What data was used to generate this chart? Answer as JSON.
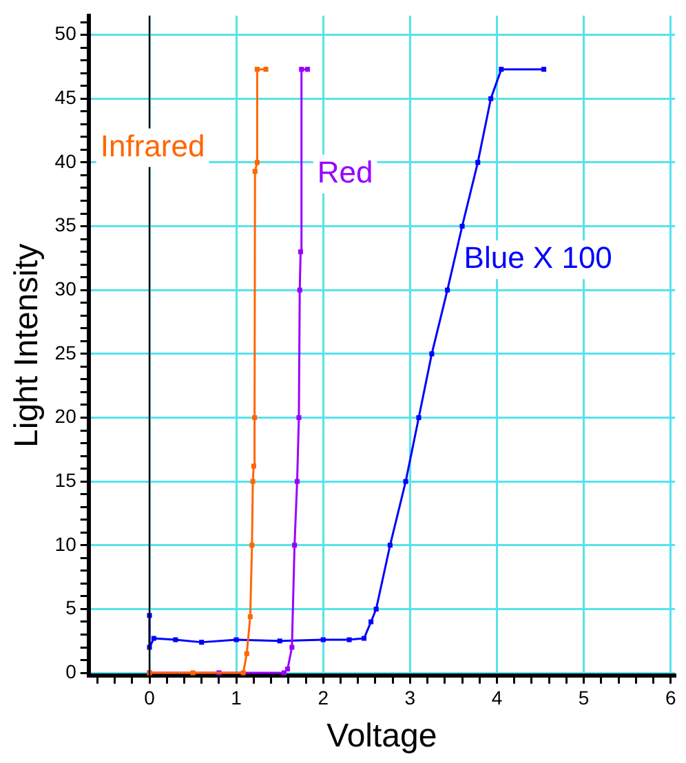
{
  "chart_data": {
    "type": "line",
    "xlabel": "Voltage",
    "ylabel": "Light Intensity",
    "xlim": [
      -0.7,
      6.05
    ],
    "ylim": [
      -0.2,
      51.5
    ],
    "xticks": [
      {
        "value": -0.6,
        "label": null
      },
      {
        "value": -0.4,
        "label": null
      },
      {
        "value": -0.2,
        "label": null
      },
      0,
      {
        "value": 0.2,
        "label": null
      },
      {
        "value": 0.4,
        "label": null
      },
      {
        "value": 0.6,
        "label": null
      },
      {
        "value": 0.8,
        "label": null
      },
      1,
      {
        "value": 1.2,
        "label": null
      },
      {
        "value": 1.4,
        "label": null
      },
      {
        "value": 1.6,
        "label": null
      },
      {
        "value": 1.8,
        "label": null
      },
      2,
      {
        "value": 2.2,
        "label": null
      },
      {
        "value": 2.4,
        "label": null
      },
      {
        "value": 2.6,
        "label": null
      },
      {
        "value": 2.8,
        "label": null
      },
      3,
      {
        "value": 3.2,
        "label": null
      },
      {
        "value": 3.4,
        "label": null
      },
      {
        "value": 3.6,
        "label": null
      },
      {
        "value": 3.8,
        "label": null
      },
      4,
      {
        "value": 4.2,
        "label": null
      },
      {
        "value": 4.4,
        "label": null
      },
      {
        "value": 4.6,
        "label": null
      },
      {
        "value": 4.8,
        "label": null
      },
      5,
      {
        "value": 5.2,
        "label": null
      },
      {
        "value": 5.4,
        "label": null
      },
      {
        "value": 5.6,
        "label": null
      },
      {
        "value": 5.8,
        "label": null
      },
      6
    ],
    "yticks": [
      0,
      {
        "value": 1,
        "label": null
      },
      {
        "value": 2,
        "label": null
      },
      {
        "value": 3,
        "label": null
      },
      {
        "value": 4,
        "label": null
      },
      5,
      {
        "value": 6,
        "label": null
      },
      {
        "value": 7,
        "label": null
      },
      {
        "value": 8,
        "label": null
      },
      {
        "value": 9,
        "label": null
      },
      10,
      {
        "value": 11,
        "label": null
      },
      {
        "value": 12,
        "label": null
      },
      {
        "value": 13,
        "label": null
      },
      {
        "value": 14,
        "label": null
      },
      15,
      {
        "value": 16,
        "label": null
      },
      {
        "value": 17,
        "label": null
      },
      {
        "value": 18,
        "label": null
      },
      {
        "value": 19,
        "label": null
      },
      20,
      {
        "value": 21,
        "label": null
      },
      {
        "value": 22,
        "label": null
      },
      {
        "value": 23,
        "label": null
      },
      {
        "value": 24,
        "label": null
      },
      25,
      {
        "value": 26,
        "label": null
      },
      {
        "value": 27,
        "label": null
      },
      {
        "value": 28,
        "label": null
      },
      {
        "value": 29,
        "label": null
      },
      30,
      {
        "value": 31,
        "label": null
      },
      {
        "value": 32,
        "label": null
      },
      {
        "value": 33,
        "label": null
      },
      {
        "value": 34,
        "label": null
      },
      35,
      {
        "value": 36,
        "label": null
      },
      {
        "value": 37,
        "label": null
      },
      {
        "value": 38,
        "label": null
      },
      {
        "value": 39,
        "label": null
      },
      40,
      {
        "value": 41,
        "label": null
      },
      {
        "value": 42,
        "label": null
      },
      {
        "value": 43,
        "label": null
      },
      {
        "value": 44,
        "label": null
      },
      45,
      {
        "value": 46,
        "label": null
      },
      {
        "value": 47,
        "label": null
      },
      {
        "value": 48,
        "label": null
      },
      {
        "value": 49,
        "label": null
      },
      50,
      {
        "value": 51,
        "label": null
      }
    ],
    "grid": true,
    "legend": false,
    "marker": "square",
    "line_style": "solid",
    "ref_lines": [
      {
        "axis": "x",
        "value": 0,
        "label": null,
        "color": "#000000"
      }
    ],
    "series": [
      {
        "name": "Infrared",
        "color": "#ff6600",
        "x": [
          0,
          0.5,
          1.08,
          1.12,
          1.16,
          1.18,
          1.19,
          1.2,
          1.21,
          1.215,
          1.24,
          1.24,
          1.34
        ],
        "values": [
          0,
          0,
          0,
          1.5,
          4.4,
          10,
          15,
          16.2,
          20,
          39.3,
          40,
          47.3,
          47.3
        ]
      },
      {
        "name": "Red",
        "color": "#9900ff",
        "x": [
          0,
          0.8,
          1.55,
          1.59,
          1.64,
          1.67,
          1.7,
          1.72,
          1.73,
          1.74,
          1.75,
          1.82
        ],
        "values": [
          0,
          0,
          0,
          0.3,
          2,
          10,
          15,
          20,
          30,
          33,
          47.3,
          47.3
        ]
      },
      {
        "name": "Blue X 100",
        "color": "#0000ff",
        "x": [
          0,
          0,
          0.05,
          0.3,
          0.6,
          1.0,
          1.5,
          2.0,
          2.3,
          2.47,
          2.55,
          2.61,
          2.77,
          2.95,
          3.1,
          3.25,
          3.43,
          3.6,
          3.78,
          3.93,
          4.05,
          4.54
        ],
        "values": [
          4.5,
          2,
          2.7,
          2.6,
          2.4,
          2.6,
          2.5,
          2.6,
          2.6,
          2.7,
          4,
          5,
          10,
          15,
          20,
          25,
          30,
          35,
          40,
          45,
          47.3,
          47.3
        ]
      }
    ]
  }
}
